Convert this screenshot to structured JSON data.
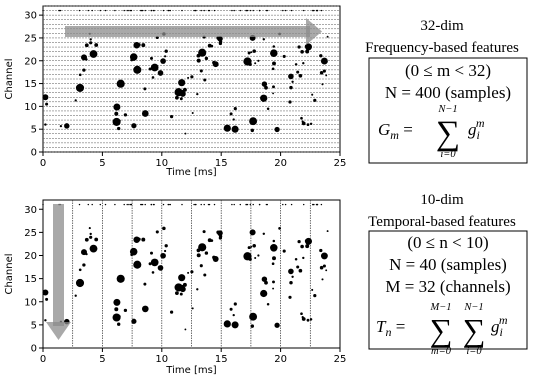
{
  "panels": [
    {
      "id": "top",
      "xlabel": "Time [ms]",
      "ylabel": "Channel",
      "x_ticks": [
        "0",
        "5",
        "10",
        "15",
        "20",
        "25"
      ],
      "y_ticks": [
        "0",
        "5",
        "10",
        "15",
        "20",
        "25",
        "30"
      ],
      "xlim": [
        0,
        25
      ],
      "ylim": [
        0,
        32
      ],
      "arrow": "horizontal"
    },
    {
      "id": "bottom",
      "xlabel": "Time [ms]",
      "ylabel": "Channel",
      "x_ticks": [
        "0",
        "5",
        "10",
        "15",
        "20",
        "25"
      ],
      "y_ticks": [
        "0",
        "5",
        "10",
        "15",
        "20",
        "25",
        "30"
      ],
      "xlim": [
        0,
        25
      ],
      "ylim": [
        0,
        32
      ],
      "arrow": "vertical"
    }
  ],
  "right_top": {
    "title1": "32-dim",
    "title2": "Frequency-based features",
    "range": "(0 ≤ m < 32)",
    "n_eq": "N = 400 (samples)",
    "formula_lhs": "G",
    "formula_sub": "m",
    "formula_sum_top": "N−1",
    "formula_sum_bot": "i=0",
    "formula_term": "g",
    "formula_term_sub": "i",
    "formula_term_sup": "m"
  },
  "right_bottom": {
    "title1": "10-dim",
    "title2": "Temporal-based features",
    "range": "(0 ≤ n < 10)",
    "n_eq": "N = 40 (samples)",
    "m_eq": "M = 32 (channels)",
    "formula_lhs": "T",
    "formula_sub": "n",
    "sum1_top": "M−1",
    "sum1_bot": "m=0",
    "sum2_top": "N−1",
    "sum2_bot": "i=0",
    "formula_term": "g",
    "formula_term_sub": "i",
    "formula_term_sup": "m"
  }
}
